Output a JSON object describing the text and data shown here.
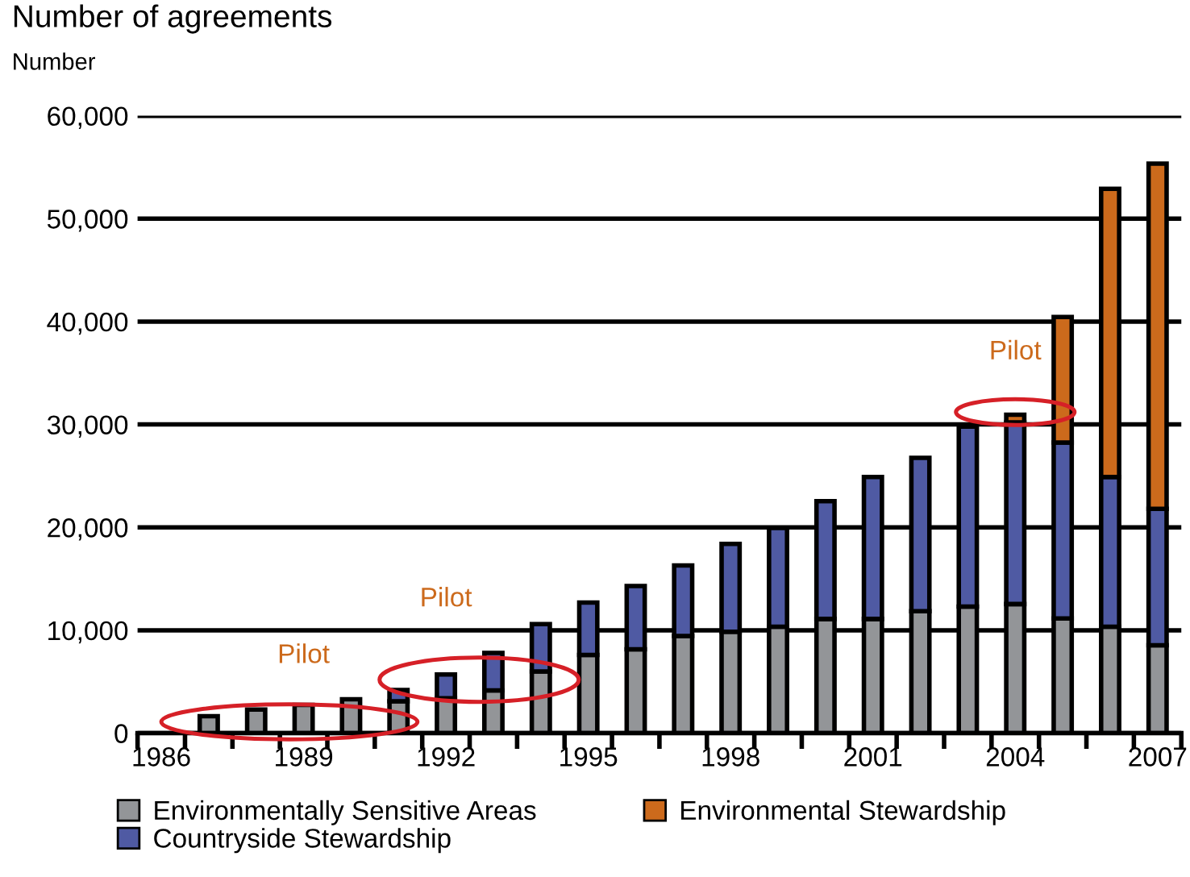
{
  "chart_data": {
    "type": "bar",
    "title": "Number of agreements",
    "ylabel": "Number",
    "stacked": true,
    "categories": [
      "1986",
      null,
      null,
      "1989",
      null,
      null,
      "1992",
      null,
      null,
      "1995",
      null,
      null,
      "1998",
      null,
      null,
      "2001",
      null,
      null,
      "2004",
      null,
      null,
      "2007"
    ],
    "series": [
      {
        "name": "Environmentally Sensitive Areas",
        "color": "#939598",
        "values": [
          null,
          1650,
          2300,
          2750,
          3300,
          3100,
          3400,
          4150,
          6000,
          7600,
          8150,
          9450,
          9850,
          10350,
          11100,
          11100,
          11850,
          12300,
          12550,
          11150,
          10350,
          8550
        ]
      },
      {
        "name": "Countryside Stewardship",
        "color": "#4f5aa3",
        "values": [
          null,
          null,
          null,
          null,
          null,
          1100,
          2300,
          3650,
          4600,
          5100,
          6150,
          6850,
          8550,
          9600,
          11450,
          13800,
          14900,
          17500,
          17650,
          17100,
          14550,
          13250
        ]
      },
      {
        "name": "Environmental Stewardship",
        "color": "#cc6a1c",
        "values": [
          null,
          null,
          null,
          null,
          null,
          null,
          null,
          null,
          null,
          null,
          null,
          null,
          null,
          null,
          null,
          null,
          null,
          null,
          750,
          12200,
          28000,
          33550
        ]
      }
    ],
    "ylim": [
      0,
      60000
    ],
    "yticks": [
      {
        "value": 0,
        "label": "0"
      },
      {
        "value": 10000,
        "label": "10,000"
      },
      {
        "value": 20000,
        "label": "20,000"
      },
      {
        "value": 30000,
        "label": "30,000"
      },
      {
        "value": 40000,
        "label": "40,000"
      },
      {
        "value": 50000,
        "label": "50,000"
      },
      {
        "value": 60000,
        "label": "60,000"
      }
    ],
    "grid": "y",
    "legend": "bottom",
    "annotations": [
      "Pilot",
      "Pilot",
      "Pilot"
    ]
  }
}
